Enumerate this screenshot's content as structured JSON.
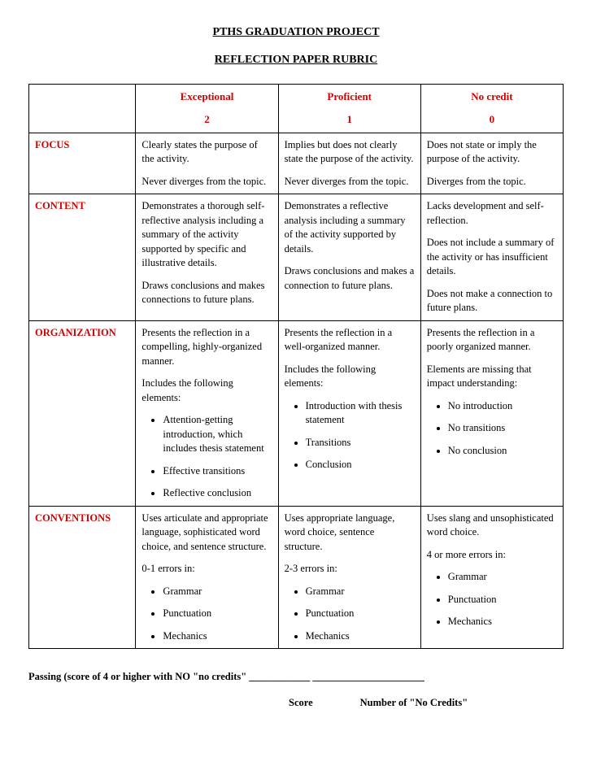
{
  "title1": "PTHS GRADUATION PROJECT",
  "title2": "REFLECTION PAPER RUBRIC",
  "header_color": "#d40000",
  "border_color": "#000000",
  "columns": [
    {
      "label": "Exceptional",
      "score": "2"
    },
    {
      "label": "Proficient",
      "score": "1"
    },
    {
      "label": "No credit",
      "score": "0"
    }
  ],
  "rows": [
    {
      "category": "FOCUS",
      "cells": [
        {
          "paras": [
            "Clearly states the purpose of the activity.",
            "Never diverges from the topic."
          ]
        },
        {
          "paras": [
            "Implies but does not clearly state the purpose of the activity.",
            "Never diverges from the topic."
          ]
        },
        {
          "paras": [
            "Does not state or imply the purpose of the activity.",
            "Diverges from the topic."
          ]
        }
      ]
    },
    {
      "category": "CONTENT",
      "cells": [
        {
          "paras": [
            "Demonstrates a thorough self-reflective analysis including a summary of the activity supported by specific and illustrative details.",
            "Draws conclusions and makes connections to future plans."
          ]
        },
        {
          "paras": [
            "Demonstrates a reflective analysis including a summary of the activity supported by details.",
            "Draws conclusions and makes a connection to future plans."
          ]
        },
        {
          "paras": [
            "Lacks development and self-reflection.",
            "Does not include a summary of the activity or has insufficient details.",
            "Does not make a connection to future plans."
          ]
        }
      ]
    },
    {
      "category": "ORGANIZATION",
      "cells": [
        {
          "paras": [
            "Presents the reflection in a compelling, highly-organized manner.",
            "Includes the following elements:"
          ],
          "bullets": [
            "Attention-getting introduction, which includes thesis statement",
            "Effective transitions",
            "Reflective conclusion"
          ]
        },
        {
          "paras": [
            "Presents the reflection in a well-organized manner.",
            "Includes the following elements:"
          ],
          "bullets": [
            "Introduction with thesis statement",
            "Transitions",
            "Conclusion"
          ]
        },
        {
          "paras": [
            "Presents the reflection in a poorly organized manner.",
            "Elements are missing that impact understanding:"
          ],
          "bullets": [
            "No introduction",
            "No transitions",
            "No conclusion"
          ]
        }
      ]
    },
    {
      "category": "CONVENTIONS",
      "cells": [
        {
          "paras": [
            "Uses articulate and appropriate language, sophisticated word choice, and sentence structure.",
            "0-1 errors in:"
          ],
          "bullets": [
            "Grammar",
            "Punctuation",
            "Mechanics"
          ]
        },
        {
          "paras": [
            "Uses appropriate language, word choice, sentence structure.",
            "2-3 errors in:"
          ],
          "bullets": [
            "Grammar",
            "Punctuation",
            "Mechanics"
          ]
        },
        {
          "paras": [
            "Uses slang and unsophisticated word choice.",
            "4 or more errors in:"
          ],
          "bullets": [
            "Grammar",
            "Punctuation",
            "Mechanics"
          ]
        }
      ]
    }
  ],
  "footer": {
    "line1": "Passing  (score of 4 or higher with NO \"no credits\"   ____________     ______________________",
    "score_label": "Score",
    "credits_label": "Number of \"No Credits\""
  }
}
